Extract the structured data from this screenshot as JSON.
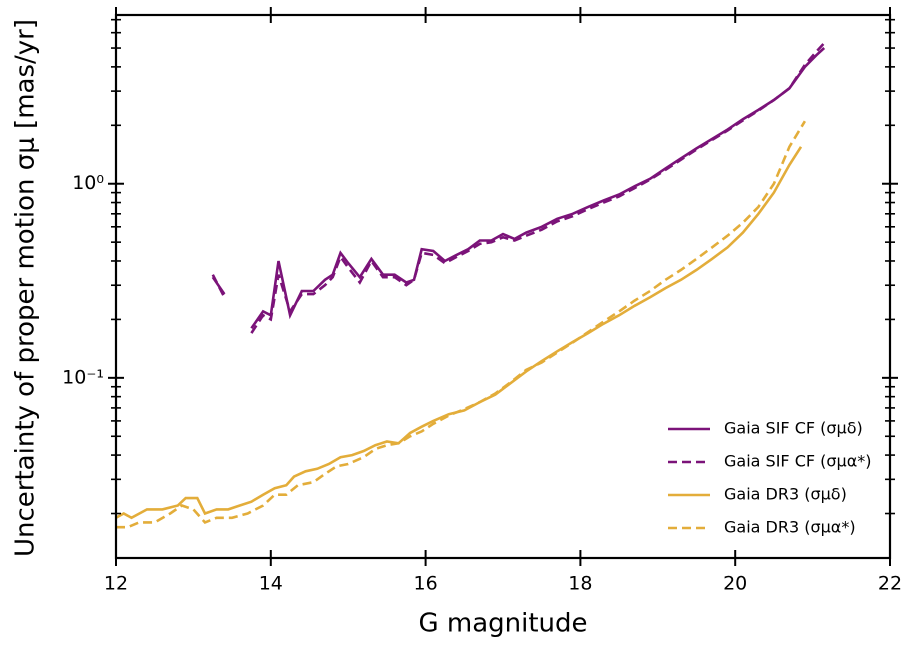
{
  "chart_data": {
    "type": "line",
    "xlabel": "G magnitude",
    "ylabel": "Uncertainty of proper motion σμ [mas/yr]",
    "xlim": [
      12,
      22
    ],
    "xticks": [
      12,
      14,
      16,
      18,
      20,
      22
    ],
    "ylim": [
      0.0118,
      7.4
    ],
    "log_y": true,
    "yticks": [
      {
        "value": 0.1,
        "label": "10⁻¹"
      },
      {
        "value": 1,
        "label": "10⁰"
      }
    ],
    "yminorticks": [
      0.02,
      0.03,
      0.04,
      0.05,
      0.06,
      0.07,
      0.08,
      0.09,
      0.2,
      0.3,
      0.4,
      0.5,
      0.6,
      0.7,
      0.8,
      0.9,
      2,
      3,
      4,
      5,
      6,
      7
    ],
    "legend": "lower right",
    "series": [
      {
        "name": "Gaia SIF CF (σμδ)",
        "color": "#7b1379",
        "dash": false,
        "x": [
          13.25,
          13.4,
          13.55,
          13.75,
          13.9,
          14.0,
          14.1,
          14.25,
          14.4,
          14.55,
          14.7,
          14.8,
          14.9,
          15.0,
          15.15,
          15.3,
          15.45,
          15.6,
          15.75,
          15.85,
          15.95,
          16.1,
          16.25,
          16.4,
          16.55,
          16.7,
          16.85,
          17.0,
          17.15,
          17.3,
          17.5,
          17.7,
          17.9,
          18.1,
          18.3,
          18.5,
          18.7,
          18.9,
          19.1,
          19.3,
          19.5,
          19.7,
          19.9,
          20.1,
          20.3,
          20.5,
          20.7,
          20.9,
          21.05,
          21.15
        ],
        "values": [
          0.33,
          0.27,
          null,
          0.18,
          0.22,
          0.21,
          0.4,
          0.21,
          0.28,
          0.28,
          0.32,
          0.34,
          0.44,
          0.39,
          0.33,
          0.41,
          0.34,
          0.34,
          0.31,
          0.32,
          0.46,
          0.45,
          0.4,
          0.43,
          0.46,
          0.51,
          0.51,
          0.55,
          0.52,
          0.56,
          0.6,
          0.66,
          0.7,
          0.76,
          0.82,
          0.88,
          0.97,
          1.06,
          1.2,
          1.35,
          1.52,
          1.7,
          1.9,
          2.15,
          2.4,
          2.7,
          3.1,
          4.0,
          4.6,
          5.0
        ]
      },
      {
        "name": "Gaia SIF CF (σμα*)",
        "color": "#7b1379",
        "dash": true,
        "x": [
          13.25,
          13.4,
          13.55,
          13.75,
          13.9,
          14.0,
          14.1,
          14.25,
          14.4,
          14.55,
          14.7,
          14.8,
          14.9,
          15.0,
          15.15,
          15.3,
          15.45,
          15.6,
          15.75,
          15.85,
          15.95,
          16.1,
          16.25,
          16.4,
          16.55,
          16.7,
          16.85,
          17.0,
          17.15,
          17.3,
          17.5,
          17.7,
          17.9,
          18.1,
          18.3,
          18.5,
          18.7,
          18.9,
          19.1,
          19.3,
          19.5,
          19.7,
          19.9,
          20.1,
          20.3,
          20.5,
          20.7,
          20.9,
          21.05,
          21.15
        ],
        "values": [
          0.34,
          0.26,
          null,
          0.17,
          0.21,
          0.2,
          0.34,
          0.22,
          0.27,
          0.27,
          0.3,
          0.33,
          0.42,
          0.37,
          0.31,
          0.4,
          0.33,
          0.33,
          0.3,
          0.32,
          0.44,
          0.43,
          0.39,
          0.42,
          0.45,
          0.49,
          0.5,
          0.53,
          0.51,
          0.54,
          0.58,
          0.64,
          0.68,
          0.74,
          0.8,
          0.86,
          0.95,
          1.05,
          1.18,
          1.33,
          1.5,
          1.68,
          1.88,
          2.12,
          2.38,
          2.7,
          3.1,
          4.1,
          4.8,
          5.3
        ]
      },
      {
        "name": "Gaia DR3 (σμδ)",
        "color": "#e3ad3a",
        "dash": false,
        "x": [
          12.0,
          12.1,
          12.2,
          12.4,
          12.6,
          12.8,
          12.9,
          13.05,
          13.15,
          13.3,
          13.45,
          13.6,
          13.75,
          13.9,
          14.05,
          14.2,
          14.3,
          14.45,
          14.6,
          14.75,
          14.9,
          15.05,
          15.2,
          15.35,
          15.5,
          15.65,
          15.8,
          15.95,
          16.1,
          16.3,
          16.5,
          16.7,
          16.9,
          17.1,
          17.3,
          17.5,
          17.7,
          17.9,
          18.1,
          18.3,
          18.5,
          18.7,
          18.9,
          19.1,
          19.3,
          19.5,
          19.7,
          19.9,
          20.1,
          20.3,
          20.5,
          20.7,
          20.85
        ],
        "values": [
          0.019,
          0.02,
          0.019,
          0.021,
          0.021,
          0.022,
          0.024,
          0.024,
          0.02,
          0.021,
          0.021,
          0.022,
          0.023,
          0.025,
          0.027,
          0.028,
          0.031,
          0.033,
          0.034,
          0.036,
          0.039,
          0.04,
          0.042,
          0.045,
          0.047,
          0.046,
          0.052,
          0.056,
          0.06,
          0.065,
          0.068,
          0.075,
          0.082,
          0.094,
          0.108,
          0.122,
          0.137,
          0.153,
          0.17,
          0.19,
          0.21,
          0.235,
          0.26,
          0.29,
          0.32,
          0.36,
          0.41,
          0.47,
          0.56,
          0.7,
          0.9,
          1.25,
          1.55
        ]
      },
      {
        "name": "Gaia DR3 (σμα*)",
        "color": "#e3ad3a",
        "dash": true,
        "x": [
          12.0,
          12.15,
          12.3,
          12.5,
          12.7,
          12.85,
          13.0,
          13.15,
          13.3,
          13.5,
          13.7,
          13.9,
          14.05,
          14.2,
          14.35,
          14.55,
          14.7,
          14.85,
          15.0,
          15.2,
          15.35,
          15.5,
          15.65,
          15.8,
          15.95,
          16.1,
          16.3,
          16.5,
          16.7,
          16.9,
          17.1,
          17.3,
          17.5,
          17.7,
          17.9,
          18.1,
          18.3,
          18.5,
          18.7,
          18.9,
          19.1,
          19.3,
          19.5,
          19.7,
          19.9,
          20.1,
          20.3,
          20.5,
          20.7,
          20.9
        ],
        "values": [
          0.017,
          0.017,
          0.018,
          0.018,
          0.02,
          0.022,
          0.021,
          0.018,
          0.019,
          0.019,
          0.02,
          0.022,
          0.025,
          0.025,
          0.028,
          0.029,
          0.032,
          0.035,
          0.036,
          0.039,
          0.043,
          0.045,
          0.046,
          0.05,
          0.053,
          0.058,
          0.064,
          0.069,
          0.075,
          0.083,
          0.095,
          0.11,
          0.12,
          0.135,
          0.152,
          0.172,
          0.195,
          0.22,
          0.25,
          0.28,
          0.32,
          0.36,
          0.41,
          0.47,
          0.54,
          0.63,
          0.76,
          1.0,
          1.55,
          2.1
        ]
      }
    ]
  }
}
